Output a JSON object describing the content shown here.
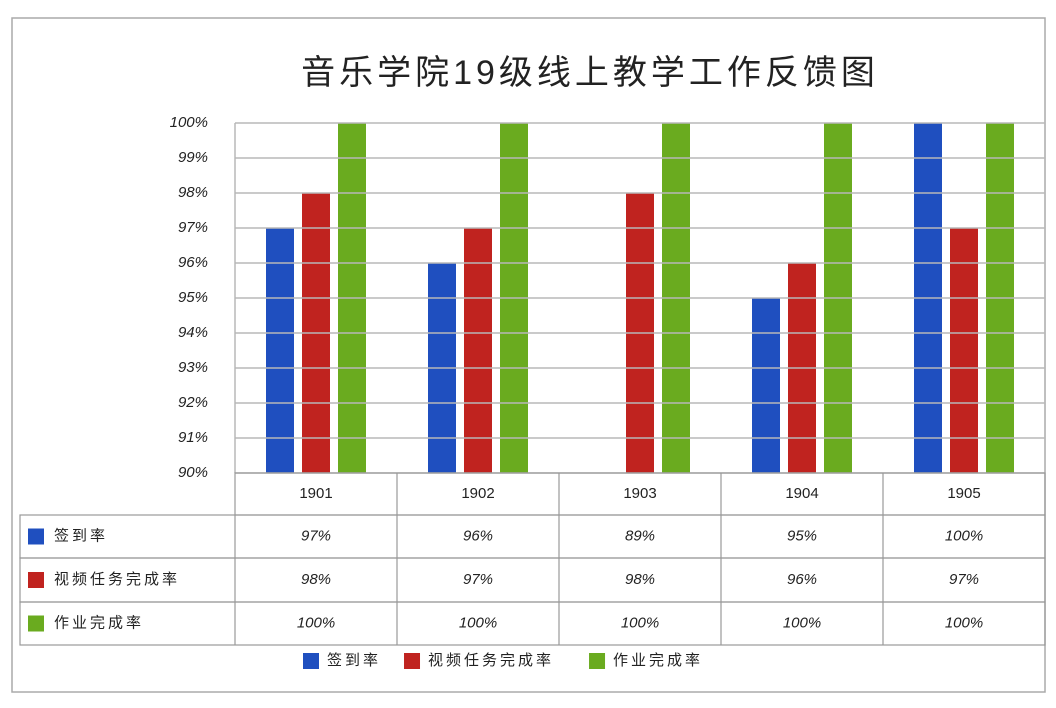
{
  "chart_data": {
    "type": "bar",
    "title": "音乐学院19级线上教学工作反馈图",
    "categories": [
      "1901",
      "1902",
      "1903",
      "1904",
      "1905"
    ],
    "series": [
      {
        "name": "签到率",
        "color": "#1f4fbf",
        "values": [
          97,
          96,
          89,
          95,
          100
        ],
        "value_labels": [
          "97%",
          "96%",
          "89%",
          "95%",
          "100%"
        ]
      },
      {
        "name": "视频任务完成率",
        "color": "#c0231f",
        "values": [
          98,
          97,
          98,
          96,
          97
        ],
        "value_labels": [
          "98%",
          "97%",
          "98%",
          "96%",
          "97%"
        ]
      },
      {
        "name": "作业完成率",
        "color": "#6aab1f",
        "values": [
          100,
          100,
          100,
          100,
          100
        ],
        "value_labels": [
          "100%",
          "100%",
          "100%",
          "100%",
          "100%"
        ]
      }
    ],
    "ylim": [
      90,
      100
    ],
    "yticks": [
      {
        "value": 90,
        "label": "90%"
      },
      {
        "value": 91,
        "label": "91%"
      },
      {
        "value": 92,
        "label": "92%"
      },
      {
        "value": 93,
        "label": "93%"
      },
      {
        "value": 94,
        "label": "94%"
      },
      {
        "value": 95,
        "label": "95%"
      },
      {
        "value": 96,
        "label": "96%"
      },
      {
        "value": 97,
        "label": "97%"
      },
      {
        "value": 98,
        "label": "98%"
      },
      {
        "value": 99,
        "label": "99%"
      },
      {
        "value": 100,
        "label": "100%"
      }
    ],
    "grid": true,
    "legend": "bottom"
  }
}
